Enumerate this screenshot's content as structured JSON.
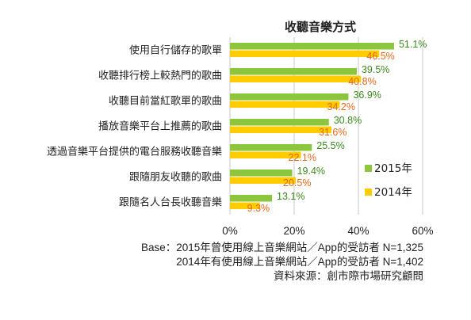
{
  "chart_data": {
    "type": "bar",
    "orientation": "horizontal",
    "title": "收聽音樂方式",
    "categories": [
      "使用自行儲存的歌單",
      "收聽排行榜上較熱門的歌曲",
      "收聽目前當紅歌單的歌曲",
      "播放音樂平台上推薦的歌曲",
      "透過音樂平台提供的電台服務收聽音樂",
      "跟隨朋友收聽的歌曲",
      "跟隨名人台長收聽音樂"
    ],
    "series": [
      {
        "name": "2015年",
        "color": "#8CC63F",
        "label_color": "#3A8A1E",
        "values": [
          51.1,
          39.5,
          36.9,
          30.8,
          25.5,
          19.4,
          13.1
        ],
        "labels": [
          "51.1%",
          "39.5%",
          "36.9%",
          "30.8%",
          "25.5%",
          "19.4%",
          "13.1%"
        ]
      },
      {
        "name": "2014年",
        "color": "#FFCC00",
        "label_color": "#E8661A",
        "values": [
          46.5,
          40.8,
          34.2,
          31.6,
          22.1,
          20.5,
          9.3
        ],
        "labels": [
          "46.5%",
          "40.8%",
          "34.2%",
          "31.6%",
          "22.1%",
          "20.5%",
          "9.3%"
        ]
      }
    ],
    "xlim": [
      0,
      60
    ],
    "xticks": [
      0,
      20,
      40,
      60
    ],
    "xtick_labels": [
      "0%",
      "20%",
      "40%",
      "60%"
    ],
    "grid": true,
    "legend_position": "bottom-right"
  },
  "footnotes": [
    "Base：2015年曾使用線上音樂網站／App的受訪者 N=1,325",
    "2014年有使用線上音樂網站／App的受訪者 N=1,402",
    "資料來源：創市際市場研究顧問"
  ]
}
